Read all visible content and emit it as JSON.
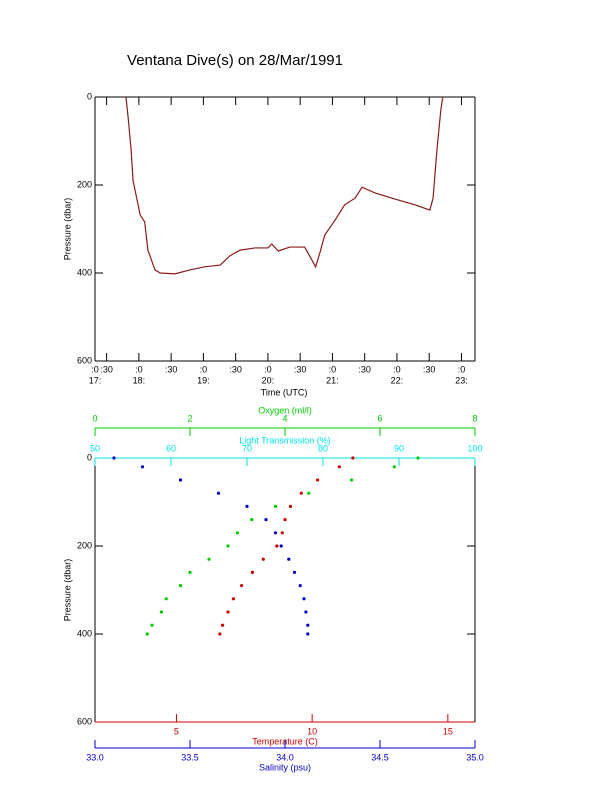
{
  "chart_data": [
    {
      "type": "line",
      "title": "Ventana Dive(s) on 28/Mar/1991",
      "xlabel": "Time (UTC)",
      "ylabel": "Pressure (dbar)",
      "x": [
        17.8,
        17.83,
        17.88,
        17.91,
        18.02,
        18.09,
        18.14,
        18.25,
        18.33,
        18.56,
        18.79,
        19.02,
        19.26,
        19.41,
        19.57,
        19.8,
        20.0,
        20.06,
        20.16,
        20.34,
        20.57,
        20.68,
        20.74,
        20.81,
        20.88,
        21.04,
        21.19,
        21.35,
        21.46,
        21.66,
        21.97,
        22.28,
        22.51,
        22.56,
        22.62,
        22.68,
        22.71
      ],
      "values": [
        0,
        41,
        120,
        190,
        268,
        284,
        348,
        393,
        400,
        402,
        393,
        386,
        382,
        361,
        348,
        343,
        343,
        334,
        350,
        341,
        341,
        370,
        386,
        352,
        314,
        280,
        245,
        230,
        205,
        218,
        232,
        245,
        257,
        230,
        120,
        30,
        0
      ],
      "color": "#8b1a1a",
      "xlim": [
        17.32,
        23.21
      ],
      "xticks": [
        {
          "value": 17.32,
          "label": ":0"
        },
        {
          "value": 17.5,
          "label": ":30"
        },
        {
          "value": 18,
          "label": ":0"
        },
        {
          "value": 18.5,
          "label": ":30"
        },
        {
          "value": 19,
          "label": ":0"
        },
        {
          "value": 19.5,
          "label": ":30"
        },
        {
          "value": 20,
          "label": ":0"
        },
        {
          "value": 20.5,
          "label": ":30"
        },
        {
          "value": 21,
          "label": ":0"
        },
        {
          "value": 21.5,
          "label": ":30"
        },
        {
          "value": 22,
          "label": ":0"
        },
        {
          "value": 22.5,
          "label": ":30"
        },
        {
          "value": 23,
          "label": ":0"
        }
      ],
      "xticks_secondary": [
        {
          "value": 17.32,
          "label": "17:"
        },
        {
          "value": 18,
          "label": "18:"
        },
        {
          "value": 19,
          "label": "19:"
        },
        {
          "value": 20,
          "label": "20:"
        },
        {
          "value": 21,
          "label": "21:"
        },
        {
          "value": 22,
          "label": "22:"
        },
        {
          "value": 23,
          "label": "23:"
        }
      ],
      "ylim": [
        0,
        600
      ],
      "yticks": [
        0,
        200,
        400,
        600
      ],
      "y_inverted": true
    },
    {
      "type": "scatter",
      "ylabel": "Pressure (dbar)",
      "ylim": [
        0,
        600
      ],
      "yticks": [
        0,
        200,
        400,
        600
      ],
      "y_inverted": true,
      "x_axes": [
        {
          "label": "Oxygen (ml/l)",
          "color": "#00cc00",
          "side": "top",
          "xlim": [
            0,
            8
          ],
          "xticks": [
            0,
            2,
            4,
            6,
            8
          ]
        },
        {
          "label": "Light Transmission (%)",
          "color": "#00e5ee",
          "side": "top",
          "xlim": [
            50,
            100
          ],
          "xticks": [
            50,
            60,
            70,
            80,
            90,
            100
          ]
        },
        {
          "label": "Temperature (C)",
          "color": "#cc0000",
          "side": "bottom",
          "xlim": [
            2,
            16
          ],
          "xticks": [
            5,
            10,
            15
          ]
        },
        {
          "label": "Salinity (psu)",
          "color": "#0000cc",
          "side": "bottom",
          "xlim": [
            33,
            35
          ],
          "xticks": [
            {
              "value": 33,
              "label": "33.0"
            },
            33.5,
            {
              "value": 34,
              "label": "34.0"
            },
            34.5,
            {
              "value": 35,
              "label": "35.0"
            }
          ]
        }
      ],
      "series": [
        {
          "axis": 0,
          "color": "#00cc00",
          "y": [
            0,
            20,
            50,
            80,
            110,
            140,
            170,
            200,
            230,
            260,
            290,
            320,
            350,
            380,
            400
          ],
          "x": [
            6.8,
            6.3,
            5.4,
            4.5,
            3.8,
            3.3,
            3.0,
            2.8,
            2.4,
            2.0,
            1.8,
            1.5,
            1.4,
            1.2,
            1.1
          ]
        },
        {
          "axis": 2,
          "color": "#cc0000",
          "y": [
            0,
            20,
            50,
            80,
            110,
            140,
            170,
            200,
            230,
            260,
            290,
            320,
            350,
            380,
            400
          ],
          "x": [
            11.5,
            11.0,
            10.2,
            9.6,
            9.2,
            9.0,
            8.9,
            8.7,
            8.2,
            7.8,
            7.4,
            7.1,
            6.9,
            6.7,
            6.6
          ]
        },
        {
          "axis": 3,
          "color": "#0000cc",
          "y": [
            0,
            20,
            50,
            80,
            110,
            140,
            170,
            200,
            230,
            260,
            290,
            320,
            350,
            380,
            400
          ],
          "x": [
            33.1,
            33.25,
            33.45,
            33.65,
            33.8,
            33.9,
            33.95,
            33.98,
            34.02,
            34.05,
            34.08,
            34.1,
            34.11,
            34.12,
            34.12
          ]
        }
      ]
    }
  ]
}
